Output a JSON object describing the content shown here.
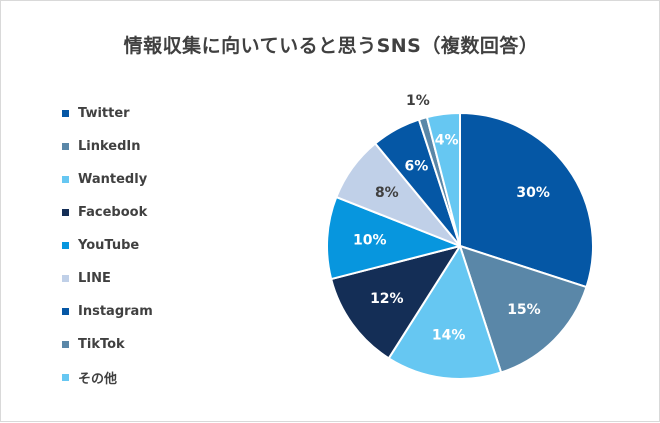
{
  "chart_data": {
    "type": "pie",
    "title": "情報収集に向いていると思うSNS（複数回答）",
    "legend_position": "left",
    "start_angle": "top, clockwise",
    "slices": [
      {
        "label": "Twitter",
        "value": 30,
        "value_label": "30%",
        "color": "#0557a5",
        "label_color": "#ffffff"
      },
      {
        "label": "LinkedIn",
        "value": 15,
        "value_label": "15%",
        "color": "#5a87a8",
        "label_color": "#ffffff"
      },
      {
        "label": "Wantedly",
        "value": 14,
        "value_label": "14%",
        "color": "#66c7f2",
        "label_color": "#ffffff"
      },
      {
        "label": "Facebook",
        "value": 12,
        "value_label": "12%",
        "color": "#142e56",
        "label_color": "#ffffff"
      },
      {
        "label": "YouTube",
        "value": 10,
        "value_label": "10%",
        "color": "#0796de",
        "label_color": "#ffffff"
      },
      {
        "label": "LINE",
        "value": 8,
        "value_label": "8%",
        "color": "#c0d0e8",
        "label_color": "#404040"
      },
      {
        "label": "Instagram",
        "value": 6,
        "value_label": "6%",
        "color": "#0557a5",
        "label_color": "#ffffff"
      },
      {
        "label": "TikTok",
        "value": 1,
        "value_label": "1%",
        "color": "#5a87a8",
        "label_color": "#404040"
      },
      {
        "label": "その他",
        "value": 4,
        "value_label": "4%",
        "color": "#66c7f2",
        "label_color": "#ffffff"
      }
    ]
  }
}
